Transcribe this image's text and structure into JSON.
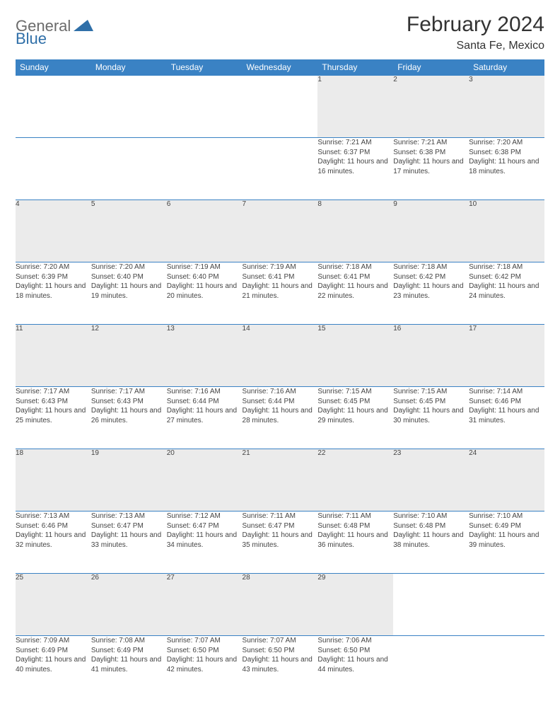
{
  "logo": {
    "general": "General",
    "blue": "Blue"
  },
  "title": "February 2024",
  "location": "Santa Fe, Mexico",
  "colors": {
    "header_bg": "#3a82c4",
    "daynum_bg": "#ebebeb",
    "logo_gray": "#6b6b6b",
    "logo_blue": "#2f6fa8"
  },
  "weekdays": [
    "Sunday",
    "Monday",
    "Tuesday",
    "Wednesday",
    "Thursday",
    "Friday",
    "Saturday"
  ],
  "weeks": [
    [
      null,
      null,
      null,
      null,
      {
        "n": "1",
        "sr": "7:21 AM",
        "ss": "6:37 PM",
        "dl": "11 hours and 16 minutes."
      },
      {
        "n": "2",
        "sr": "7:21 AM",
        "ss": "6:38 PM",
        "dl": "11 hours and 17 minutes."
      },
      {
        "n": "3",
        "sr": "7:20 AM",
        "ss": "6:38 PM",
        "dl": "11 hours and 18 minutes."
      }
    ],
    [
      {
        "n": "4",
        "sr": "7:20 AM",
        "ss": "6:39 PM",
        "dl": "11 hours and 18 minutes."
      },
      {
        "n": "5",
        "sr": "7:20 AM",
        "ss": "6:40 PM",
        "dl": "11 hours and 19 minutes."
      },
      {
        "n": "6",
        "sr": "7:19 AM",
        "ss": "6:40 PM",
        "dl": "11 hours and 20 minutes."
      },
      {
        "n": "7",
        "sr": "7:19 AM",
        "ss": "6:41 PM",
        "dl": "11 hours and 21 minutes."
      },
      {
        "n": "8",
        "sr": "7:18 AM",
        "ss": "6:41 PM",
        "dl": "11 hours and 22 minutes."
      },
      {
        "n": "9",
        "sr": "7:18 AM",
        "ss": "6:42 PM",
        "dl": "11 hours and 23 minutes."
      },
      {
        "n": "10",
        "sr": "7:18 AM",
        "ss": "6:42 PM",
        "dl": "11 hours and 24 minutes."
      }
    ],
    [
      {
        "n": "11",
        "sr": "7:17 AM",
        "ss": "6:43 PM",
        "dl": "11 hours and 25 minutes."
      },
      {
        "n": "12",
        "sr": "7:17 AM",
        "ss": "6:43 PM",
        "dl": "11 hours and 26 minutes."
      },
      {
        "n": "13",
        "sr": "7:16 AM",
        "ss": "6:44 PM",
        "dl": "11 hours and 27 minutes."
      },
      {
        "n": "14",
        "sr": "7:16 AM",
        "ss": "6:44 PM",
        "dl": "11 hours and 28 minutes."
      },
      {
        "n": "15",
        "sr": "7:15 AM",
        "ss": "6:45 PM",
        "dl": "11 hours and 29 minutes."
      },
      {
        "n": "16",
        "sr": "7:15 AM",
        "ss": "6:45 PM",
        "dl": "11 hours and 30 minutes."
      },
      {
        "n": "17",
        "sr": "7:14 AM",
        "ss": "6:46 PM",
        "dl": "11 hours and 31 minutes."
      }
    ],
    [
      {
        "n": "18",
        "sr": "7:13 AM",
        "ss": "6:46 PM",
        "dl": "11 hours and 32 minutes."
      },
      {
        "n": "19",
        "sr": "7:13 AM",
        "ss": "6:47 PM",
        "dl": "11 hours and 33 minutes."
      },
      {
        "n": "20",
        "sr": "7:12 AM",
        "ss": "6:47 PM",
        "dl": "11 hours and 34 minutes."
      },
      {
        "n": "21",
        "sr": "7:11 AM",
        "ss": "6:47 PM",
        "dl": "11 hours and 35 minutes."
      },
      {
        "n": "22",
        "sr": "7:11 AM",
        "ss": "6:48 PM",
        "dl": "11 hours and 36 minutes."
      },
      {
        "n": "23",
        "sr": "7:10 AM",
        "ss": "6:48 PM",
        "dl": "11 hours and 38 minutes."
      },
      {
        "n": "24",
        "sr": "7:10 AM",
        "ss": "6:49 PM",
        "dl": "11 hours and 39 minutes."
      }
    ],
    [
      {
        "n": "25",
        "sr": "7:09 AM",
        "ss": "6:49 PM",
        "dl": "11 hours and 40 minutes."
      },
      {
        "n": "26",
        "sr": "7:08 AM",
        "ss": "6:49 PM",
        "dl": "11 hours and 41 minutes."
      },
      {
        "n": "27",
        "sr": "7:07 AM",
        "ss": "6:50 PM",
        "dl": "11 hours and 42 minutes."
      },
      {
        "n": "28",
        "sr": "7:07 AM",
        "ss": "6:50 PM",
        "dl": "11 hours and 43 minutes."
      },
      {
        "n": "29",
        "sr": "7:06 AM",
        "ss": "6:50 PM",
        "dl": "11 hours and 44 minutes."
      },
      null,
      null
    ]
  ],
  "labels": {
    "sunrise": "Sunrise: ",
    "sunset": "Sunset: ",
    "daylight": "Daylight: "
  }
}
